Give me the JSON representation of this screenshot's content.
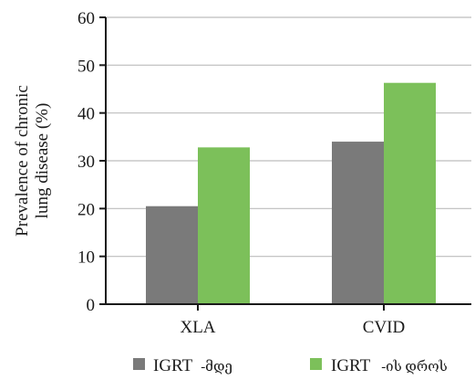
{
  "chart_data": {
    "type": "bar",
    "categories": [
      "XLA",
      "CVID"
    ],
    "series": [
      {
        "name": "IGRT -მდე",
        "name_prefix": "IGRT",
        "name_suffix": "-მდე",
        "color": "#7a7a7a",
        "values": [
          20.5,
          34.0
        ]
      },
      {
        "name": "IGRT -ის დროს",
        "name_prefix": "IGRT",
        "name_suffix": "-ის დროს",
        "color": "#7cc05a",
        "values": [
          32.8,
          46.3
        ]
      }
    ],
    "ylabel_line1": "Prevalence of chronic",
    "ylabel_line2": "lung disease (%)",
    "ylim": [
      0,
      60
    ],
    "yticks": [
      0,
      10,
      20,
      30,
      40,
      50,
      60
    ],
    "grid": true,
    "legend": "bottom"
  }
}
